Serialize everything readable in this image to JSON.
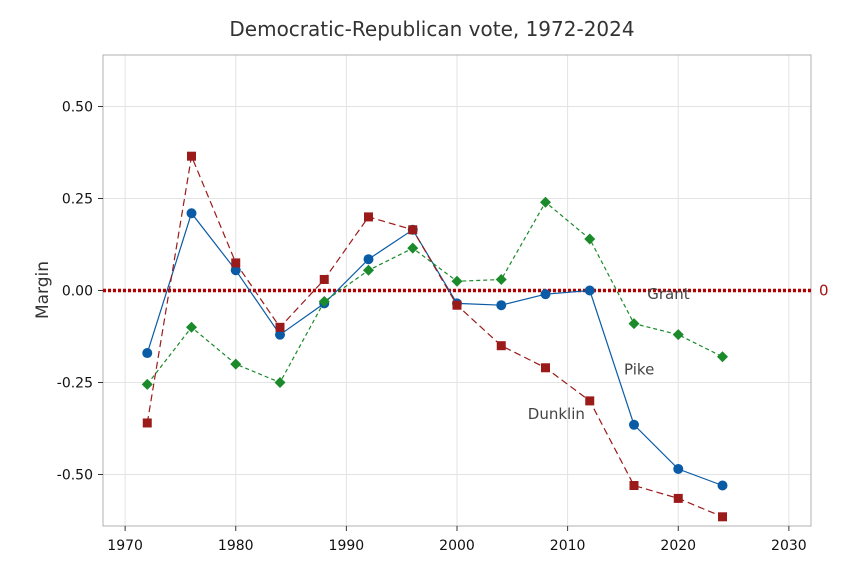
{
  "chart_data": {
    "type": "line",
    "title": "Democratic-Republican vote, 1972-2024",
    "xlabel": "",
    "ylabel": "Margin",
    "xlim": [
      1968,
      2032
    ],
    "ylim": [
      -0.64,
      0.64
    ],
    "xticks": [
      1970,
      1980,
      1990,
      2000,
      2010,
      2020,
      2030
    ],
    "yticks": [
      0.5,
      0.25,
      0.0,
      -0.25,
      -0.5
    ],
    "ytick_labels": [
      "0.50",
      "0.25",
      "0.00",
      "-0.25",
      "-0.50"
    ],
    "grid": true,
    "x": [
      1972,
      1976,
      1980,
      1984,
      1988,
      1992,
      1996,
      2000,
      2004,
      2008,
      2012,
      2016,
      2020,
      2024
    ],
    "series": [
      {
        "name": "Pike",
        "color": "#0a5ba6",
        "marker": "circle",
        "line": "solid",
        "values": [
          -0.17,
          0.21,
          0.055,
          -0.12,
          -0.035,
          0.085,
          0.165,
          -0.035,
          -0.04,
          -0.01,
          0.0,
          -0.365,
          -0.485,
          -0.53
        ]
      },
      {
        "name": "Dunklin",
        "color": "#9b1a1a",
        "marker": "square",
        "line": "dashed",
        "values": [
          -0.36,
          0.365,
          0.075,
          -0.1,
          0.03,
          0.2,
          0.165,
          -0.04,
          -0.15,
          -0.21,
          -0.3,
          -0.53,
          -0.565,
          -0.615
        ]
      },
      {
        "name": "Grant",
        "color": "#1a8a2a",
        "marker": "diamond",
        "line": "dashed",
        "values": [
          -0.255,
          -0.1,
          -0.2,
          -0.25,
          -0.03,
          0.055,
          0.115,
          0.025,
          0.03,
          0.24,
          0.14,
          -0.09,
          -0.12,
          -0.18
        ]
      }
    ],
    "annotations": [
      {
        "text": "Grant",
        "x": 2017.2,
        "y": -0.01
      },
      {
        "text": "Pike",
        "x": 2015.1,
        "y": -0.215
      },
      {
        "text": "Dunklin",
        "x": 2006.4,
        "y": -0.335
      }
    ],
    "reference_line": {
      "value": 0,
      "label": "0",
      "color": "#b30000"
    }
  }
}
